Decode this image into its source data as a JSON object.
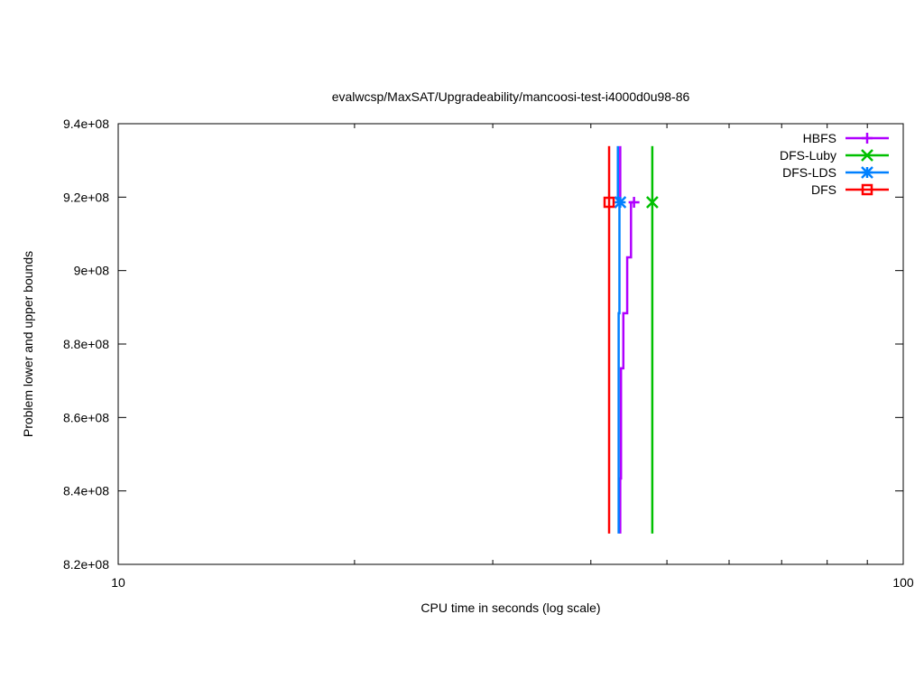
{
  "chart_data": {
    "type": "line",
    "title": "evalwcsp/MaxSAT/Upgradeability/mancoosi-test-i4000d0u98-86",
    "xlabel": "CPU time in seconds (log scale)",
    "ylabel": "Problem lower and upper bounds",
    "xscale": "log",
    "xlim": [
      10,
      100
    ],
    "ylim": [
      820000000,
      940000000
    ],
    "x_ticks": [
      {
        "v": 10,
        "label": "10"
      },
      {
        "v": 100,
        "label": "100"
      }
    ],
    "x_minor_ticks": [
      20,
      30,
      40,
      50,
      60,
      70,
      80,
      90
    ],
    "y_ticks": [
      {
        "v": 820000000,
        "label": "8.2e+08"
      },
      {
        "v": 840000000,
        "label": "8.4e+08"
      },
      {
        "v": 860000000,
        "label": "8.6e+08"
      },
      {
        "v": 880000000,
        "label": "8.8e+08"
      },
      {
        "v": 900000000,
        "label": "9e+08"
      },
      {
        "v": 920000000,
        "label": "9.2e+08"
      },
      {
        "v": 940000000,
        "label": "9.4e+08"
      }
    ],
    "grid": false,
    "legend": "top-right",
    "series": [
      {
        "name": "HBFS",
        "color": "#b000ff",
        "marker": "plus",
        "lower": [
          [
            43.6,
            828400000
          ],
          [
            43.7,
            843400000
          ],
          [
            44.0,
            873400000
          ],
          [
            44.5,
            888400000
          ],
          [
            45.0,
            903600000
          ],
          [
            45.4,
            918600000
          ]
        ],
        "upper": [
          [
            43.6,
            933900000
          ],
          [
            43.6,
            918600000
          ]
        ]
      },
      {
        "name": "DFS-Luby",
        "color": "#00c000",
        "marker": "cross",
        "lower": [
          [
            47.9,
            828400000
          ],
          [
            47.9,
            918600000
          ]
        ],
        "upper": [
          [
            47.9,
            933900000
          ],
          [
            47.9,
            918600000
          ]
        ]
      },
      {
        "name": "DFS-LDS",
        "color": "#0080ff",
        "marker": "star",
        "lower": [
          [
            43.4,
            828400000
          ],
          [
            43.5,
            888400000
          ],
          [
            43.6,
            918600000
          ]
        ],
        "upper": [
          [
            43.3,
            933900000
          ],
          [
            43.3,
            918600000
          ]
        ]
      },
      {
        "name": "DFS",
        "color": "#ff0000",
        "marker": "square",
        "lower": [
          [
            42.2,
            828400000
          ],
          [
            42.2,
            918600000
          ]
        ],
        "upper": [
          [
            42.2,
            933900000
          ],
          [
            42.2,
            918600000
          ]
        ]
      }
    ]
  }
}
